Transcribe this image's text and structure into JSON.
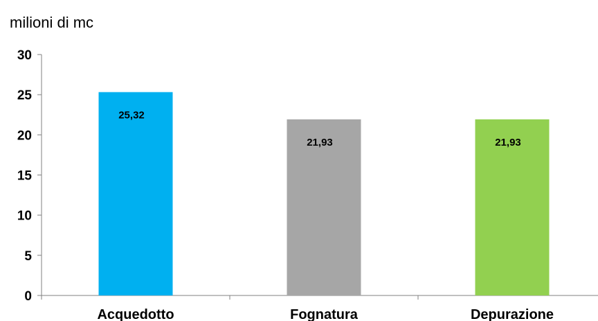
{
  "chart_data": {
    "type": "bar",
    "unit_label": "milioni di mc",
    "categories": [
      "Acquedotto",
      "Fognatura",
      "Depurazione"
    ],
    "values": [
      25.32,
      21.93,
      21.93
    ],
    "data_labels": [
      "25,32",
      "21,93",
      "21,93"
    ],
    "colors": [
      "#00B0F0",
      "#A6A6A6",
      "#92D050"
    ],
    "ylim": [
      0,
      30
    ],
    "yticks": [
      0,
      5,
      10,
      15,
      20,
      25,
      30
    ],
    "grid": false,
    "legend": "none"
  }
}
